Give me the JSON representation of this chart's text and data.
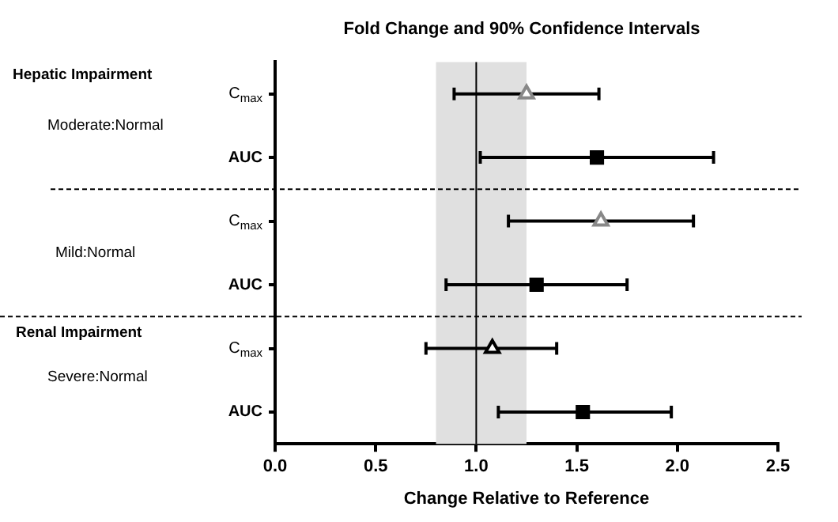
{
  "chart_data": {
    "type": "scatter",
    "orientation": "horizontal",
    "title": "Fold Change and 90% Confidence Intervals",
    "xlabel": "Change Relative to Reference",
    "categories": [
      "C$_{max}$",
      "AUC",
      "C$_{max}$",
      "AUC",
      "C$_{max}$",
      "AUC"
    ],
    "series": [
      {
        "marker": "triangle",
        "colors": [
          "#888888",
          null,
          "#888888",
          null,
          "#000000",
          null
        ],
        "values": [
          1.25,
          null,
          1.62,
          null,
          1.08,
          null
        ],
        "errors": [
          [
            0.89,
            1.61
          ],
          null,
          [
            1.16,
            2.08
          ],
          null,
          [
            0.75,
            1.4
          ],
          null
        ]
      },
      {
        "marker": "square",
        "color": "#000000",
        "values": [
          null,
          1.6,
          null,
          1.3,
          null,
          1.53
        ],
        "errors": [
          null,
          [
            1.02,
            2.18
          ],
          null,
          [
            0.85,
            1.75
          ],
          null,
          [
            1.11,
            1.97
          ]
        ]
      }
    ],
    "xlim": [
      0,
      2.5
    ],
    "xticks": [
      {
        "value": 0,
        "label": "0.0"
      },
      {
        "value": 0.5,
        "label": "0.5"
      },
      {
        "value": 1,
        "label": "1.0"
      },
      {
        "value": 1.5,
        "label": "1.5"
      },
      {
        "value": 2,
        "label": "2.0"
      },
      {
        "value": 2.5,
        "label": "2.5"
      }
    ],
    "bands": [
      {
        "axis": "x",
        "from": 0.8,
        "to": 1.25,
        "color": "#e0e0e0"
      }
    ],
    "ref_lines": [
      {
        "axis": "x",
        "value": 1,
        "color": "#000000",
        "line_style": "solid"
      }
    ],
    "annotations": [
      "Hepatic Impairment",
      "Moderate:Normal",
      "Mild:Normal",
      "Renal Impairment",
      "Severe:Normal"
    ],
    "grid": false,
    "legend": false
  }
}
